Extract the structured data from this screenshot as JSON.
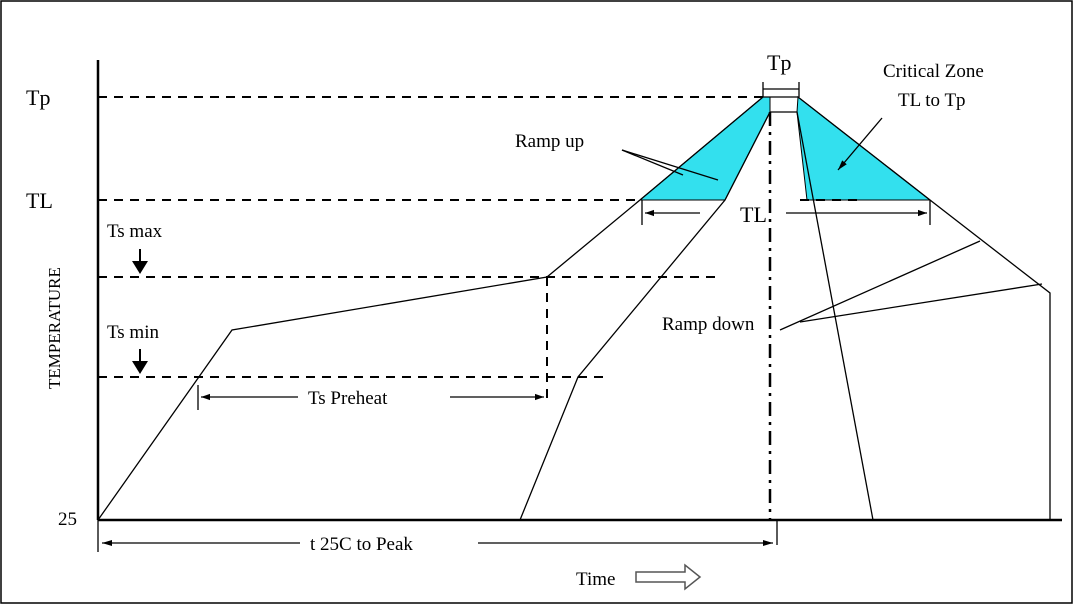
{
  "labels": {
    "tp_axis": "Tp",
    "tl_axis": "TL",
    "t25_axis": "25",
    "ts_max": "Ts max",
    "ts_min": "Ts min",
    "y_axis": "TEMPERATURE",
    "tp_top": "Tp",
    "critical_zone_line1": "Critical Zone",
    "critical_zone_line2": "TL to Tp",
    "ramp_up": "Ramp up",
    "ramp_down": "Ramp down",
    "tl_duration": "TL",
    "ts_preheat": "Ts Preheat",
    "t25_to_peak": "t 25C to Peak",
    "time_axis": "Time"
  },
  "colors": {
    "critical_zone_fill": "#33e0ee",
    "line": "#000000",
    "background": "#ffffff"
  },
  "icons": {
    "ts_max_marker": "down-arrow-icon",
    "ts_min_marker": "down-arrow-icon",
    "time_direction": "right-arrow-icon"
  }
}
